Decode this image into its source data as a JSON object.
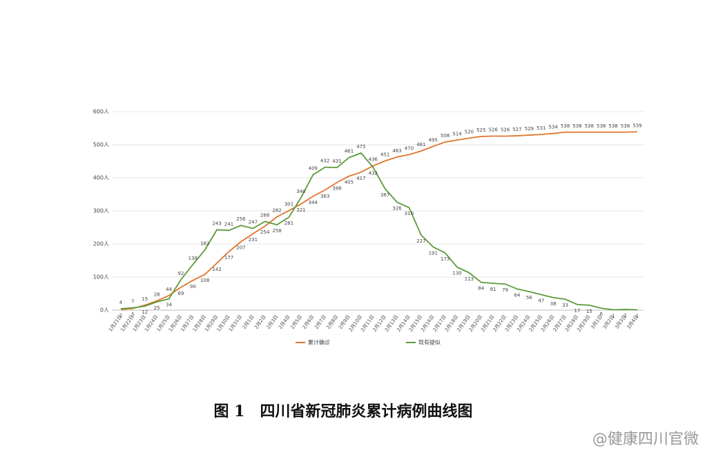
{
  "chart_data": {
    "type": "line",
    "title": "图 1　四川省新冠肺炎累计病例曲线图",
    "watermark": "@健康四川官微",
    "categories": [
      "1月21日",
      "1月22日",
      "1月23日",
      "1月24日",
      "1月25日",
      "1月26日",
      "1月27日",
      "1月28日",
      "1月29日",
      "1月30日",
      "1月31日",
      "2月1日",
      "2月2日",
      "2月3日",
      "2月4日",
      "2月5日",
      "2月6日",
      "2月7日",
      "2月8日",
      "2月9日",
      "2月10日",
      "2月11日",
      "2月12日",
      "2月13日",
      "2月14日",
      "2月15日",
      "2月16日",
      "2月17日",
      "2月18日",
      "2月19日",
      "2月20日",
      "2月21日",
      "2月22日",
      "2月23日",
      "2月24日",
      "2月25日",
      "2月26日",
      "2月27日",
      "2月28日",
      "2月29日",
      "3月1日",
      "3月2日",
      "3月3日",
      "3月4日"
    ],
    "series": [
      {
        "name": "累计确诊",
        "color": "#e0742c",
        "values": [
          2,
          5,
          15,
          28,
          44,
          69,
          90,
          108,
          142,
          177,
          207,
          231,
          254,
          282,
          301,
          321,
          344,
          363,
          386,
          405,
          417,
          436,
          451,
          463,
          470,
          481,
          495,
          508,
          514,
          520,
          525,
          526,
          526,
          527,
          529,
          531,
          534,
          538,
          538,
          538,
          538,
          538,
          538,
          539
        ]
      },
      {
        "name": "现有疑似",
        "color": "#5a9a3a",
        "values": [
          4,
          7,
          12,
          25,
          34,
          92,
          138,
          182,
          243,
          241,
          256,
          247,
          268,
          258,
          281,
          340,
          409,
          432,
          431,
          461,
          475,
          432,
          367,
          326,
          310,
          227,
          191,
          173,
          130,
          113,
          84,
          81,
          79,
          64,
          56,
          47,
          38,
          33,
          17,
          15,
          6,
          1,
          2,
          1
        ]
      }
    ],
    "ylim": [
      0,
      600
    ],
    "yticks": [
      {
        "value": 0,
        "label": "0人"
      },
      {
        "value": 100,
        "label": "100人"
      },
      {
        "value": 200,
        "label": "200人"
      },
      {
        "value": 300,
        "label": "300人"
      },
      {
        "value": 400,
        "label": "400人"
      },
      {
        "value": 500,
        "label": "500人"
      },
      {
        "value": 600,
        "label": "600人"
      }
    ],
    "grid": true,
    "legend": "bottom"
  }
}
